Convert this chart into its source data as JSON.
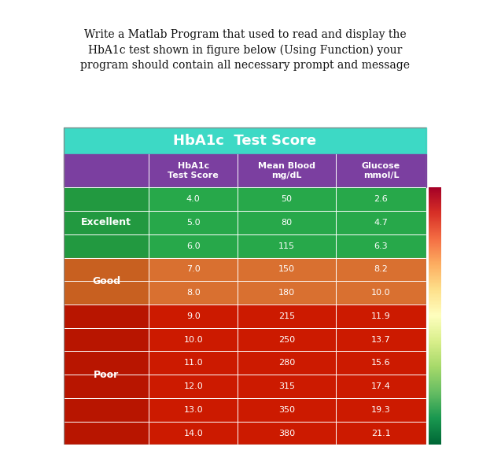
{
  "title_text": "Write a Matlab Program that used to read and display the\nHbA1c test shown in figure below (Using Function) your\nprogram should contain all necessary prompt and message",
  "table_title": "HbA1c  Test Score",
  "col_headers": [
    "HbA1c\nTest Score",
    "Mean Blood\nmg/dL",
    "Glucose\nmmol/L"
  ],
  "rows": [
    {
      "cat": "Excellent",
      "hba1c": "4.0",
      "blood": "50",
      "glucose": "2.6"
    },
    {
      "cat": "Excellent",
      "hba1c": "5.0",
      "blood": "80",
      "glucose": "4.7"
    },
    {
      "cat": "Excellent",
      "hba1c": "6.0",
      "blood": "115",
      "glucose": "6.3"
    },
    {
      "cat": "Good",
      "hba1c": "7.0",
      "blood": "150",
      "glucose": "8.2"
    },
    {
      "cat": "Good",
      "hba1c": "8.0",
      "blood": "180",
      "glucose": "10.0"
    },
    {
      "cat": "Poor",
      "hba1c": "9.0",
      "blood": "215",
      "glucose": "11.9"
    },
    {
      "cat": "Poor",
      "hba1c": "10.0",
      "blood": "250",
      "glucose": "13.7"
    },
    {
      "cat": "Poor",
      "hba1c": "11.0",
      "blood": "280",
      "glucose": "15.6"
    },
    {
      "cat": "Poor",
      "hba1c": "12.0",
      "blood": "315",
      "glucose": "17.4"
    },
    {
      "cat": "Poor",
      "hba1c": "13.0",
      "blood": "350",
      "glucose": "19.3"
    },
    {
      "cat": "Poor",
      "hba1c": "14.0",
      "blood": "380",
      "glucose": "21.1"
    }
  ],
  "cat_spans": [
    {
      "cat": "Excellent",
      "start": 0,
      "end": 2
    },
    {
      "cat": "Good",
      "start": 3,
      "end": 4
    },
    {
      "cat": "Poor",
      "start": 5,
      "end": 10
    }
  ],
  "color_header_title": "#3DD9C5",
  "color_header_cols": "#7B3FA0",
  "color_excellent": "#27A84A",
  "color_good": "#D97030",
  "color_poor": "#CC1A00",
  "color_cat_col_excellent": "#229940",
  "color_cat_col_good": "#C86020",
  "color_cat_col_poor": "#B81500",
  "text_white": "#FFFFFF",
  "bg_color": "#FFFFFF",
  "title_fontsize": 10,
  "table_title_fontsize": 13,
  "header_fontsize": 8,
  "data_fontsize": 8,
  "cat_fontsize": 9
}
